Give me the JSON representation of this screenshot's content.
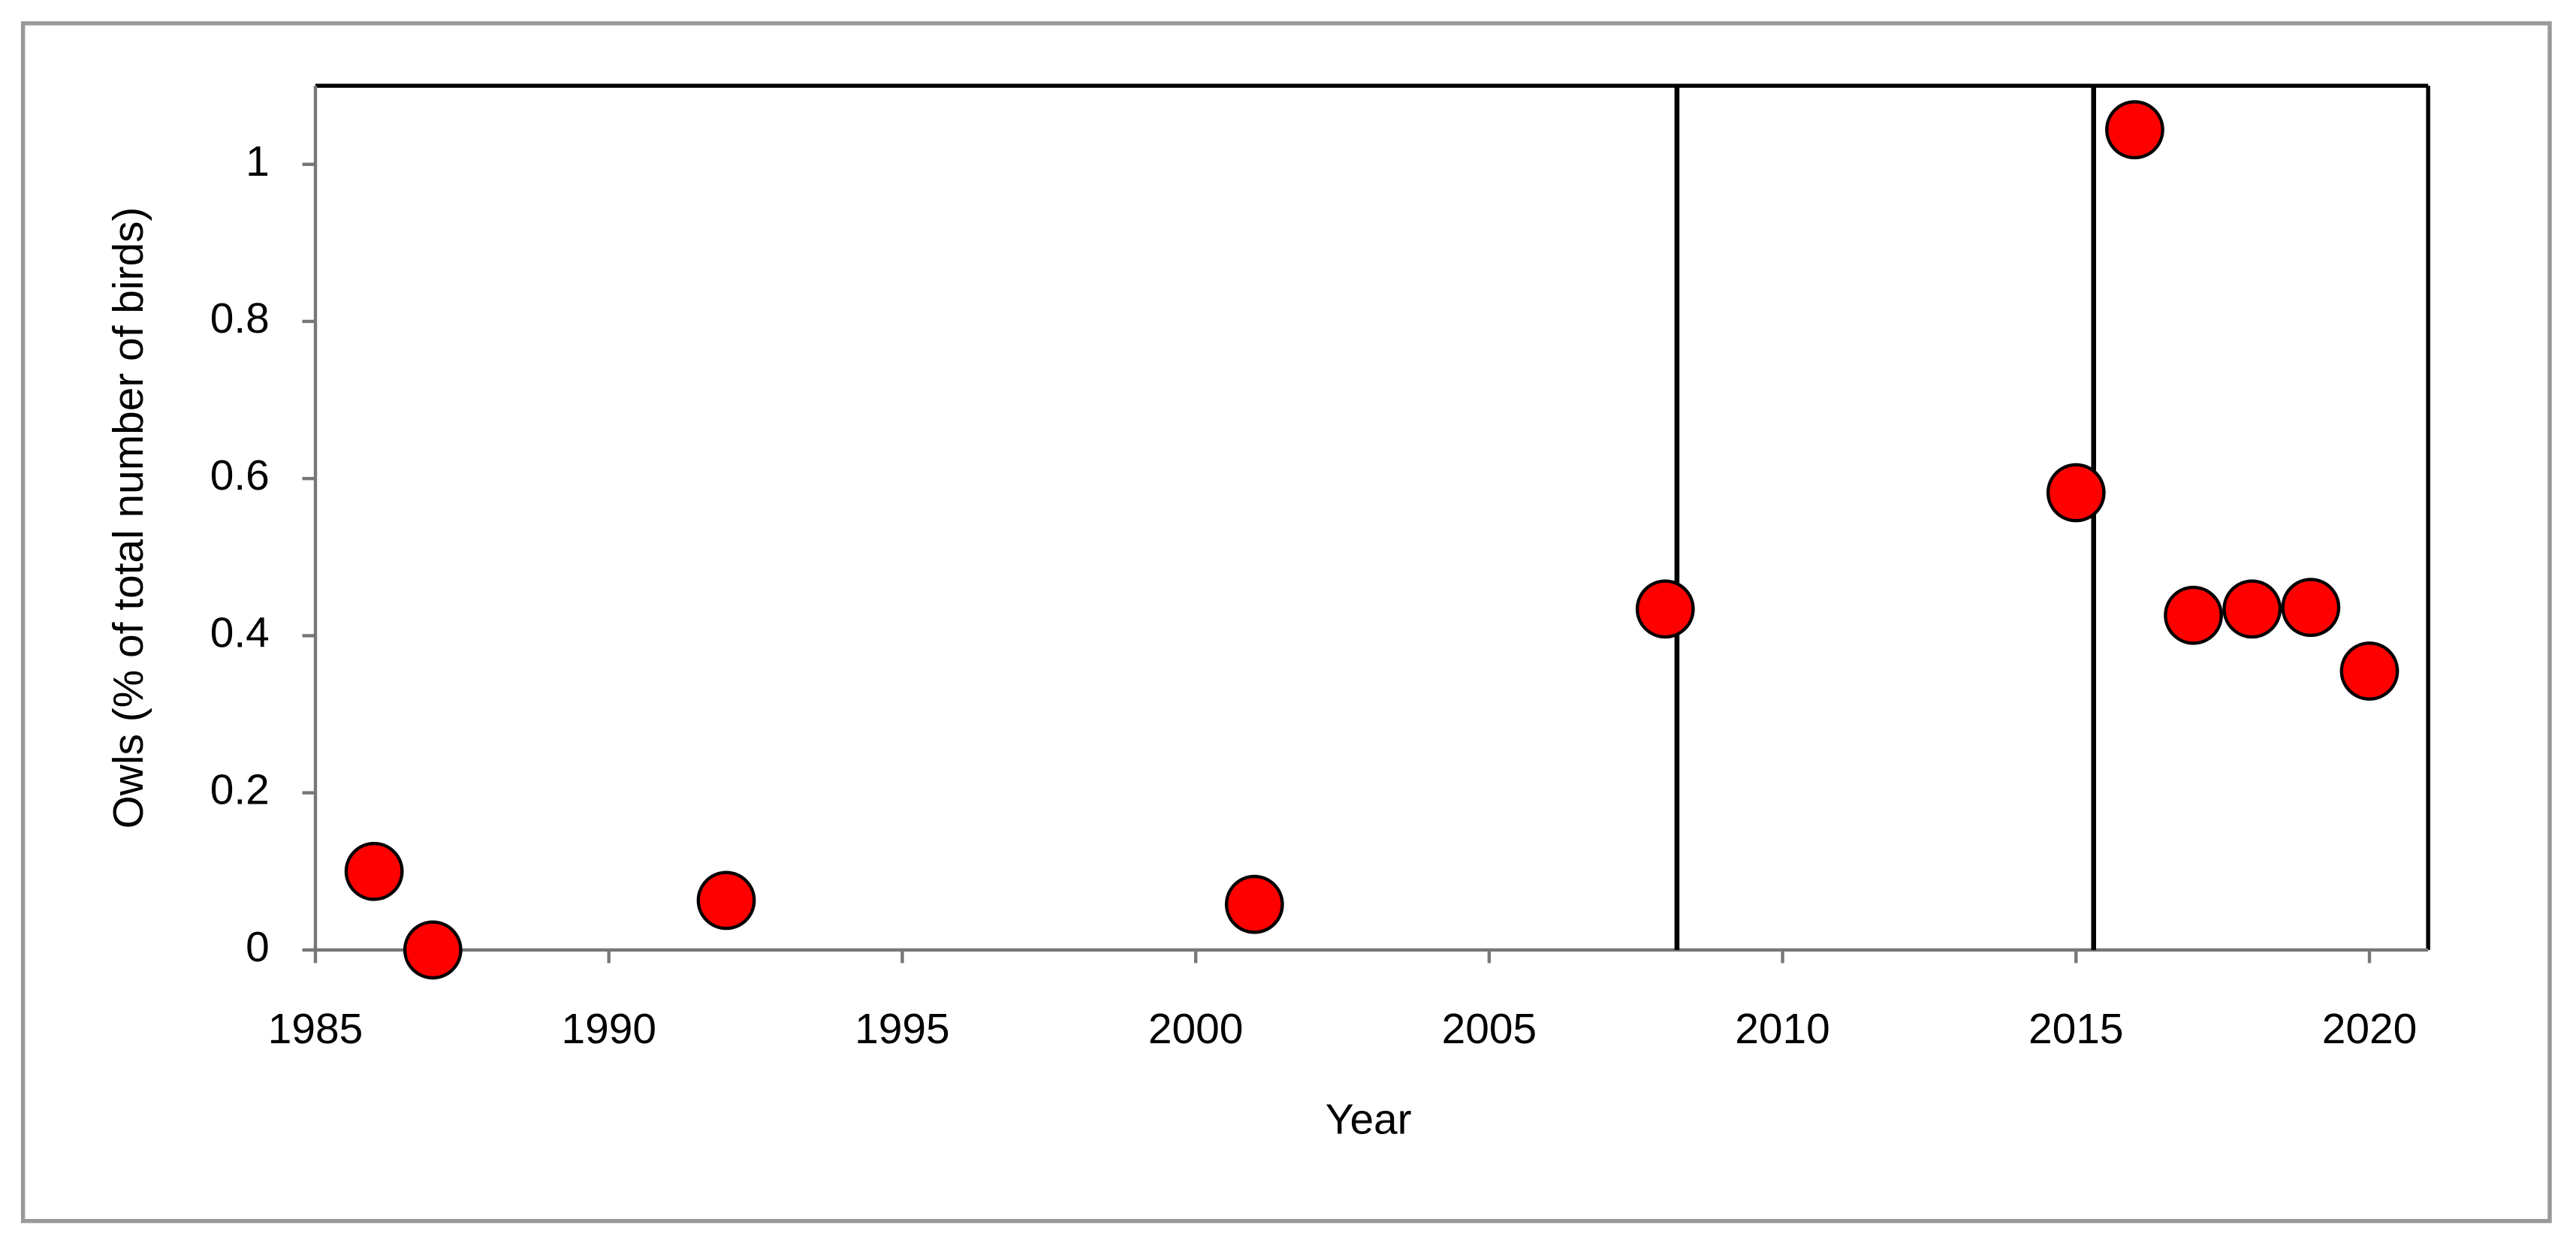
{
  "chart_data": {
    "type": "scatter",
    "x_label": "Year",
    "y_label": "Owls (% of total number of birds)",
    "x": [
      1986,
      1987,
      1992,
      2001,
      2008,
      2015,
      2016,
      2017,
      2018,
      2019,
      2020
    ],
    "values": [
      0.1,
      0,
      0.063,
      0.058,
      0.434,
      0.582,
      1.044,
      0.426,
      0.434,
      0.436,
      0.355
    ],
    "color": "#ff0000",
    "xlim": [
      1985,
      2021
    ],
    "ylim": [
      0,
      1.1
    ],
    "xticks": [
      1985,
      1990,
      1995,
      2000,
      2005,
      2010,
      2015,
      2020
    ],
    "yticks": [
      0,
      0.2,
      0.4,
      0.6,
      0.8,
      1
    ],
    "vlines": [
      2008.2,
      2015.3
    ],
    "grid": false
  }
}
